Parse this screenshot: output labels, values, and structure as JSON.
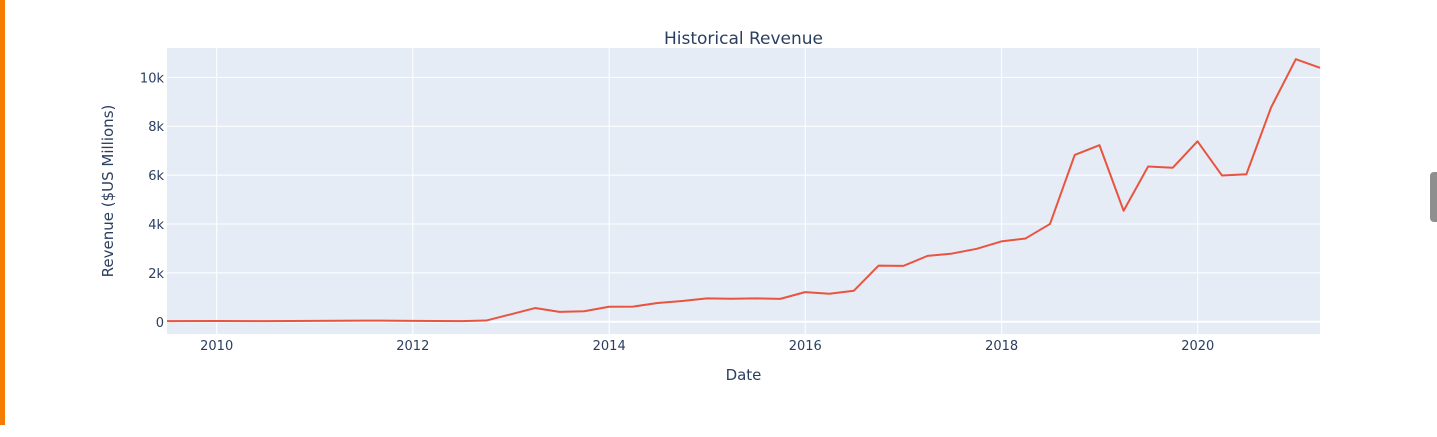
{
  "chart_data": {
    "type": "line",
    "title": "Historical Revenue",
    "xlabel": "Date",
    "ylabel": "Revenue ($US Millions)",
    "xlim": [
      "2009-06-30",
      "2021-03-31"
    ],
    "ylim": [
      -500,
      11200
    ],
    "x_ticks": [
      {
        "value": "2010-01-01",
        "label": "2010"
      },
      {
        "value": "2012-01-01",
        "label": "2012"
      },
      {
        "value": "2014-01-01",
        "label": "2014"
      },
      {
        "value": "2016-01-01",
        "label": "2016"
      },
      {
        "value": "2018-01-01",
        "label": "2018"
      },
      {
        "value": "2020-01-01",
        "label": "2020"
      }
    ],
    "y_ticks": [
      {
        "value": 0,
        "label": "0"
      },
      {
        "value": 2000,
        "label": "2k"
      },
      {
        "value": 4000,
        "label": "4k"
      },
      {
        "value": 6000,
        "label": "6k"
      },
      {
        "value": 8000,
        "label": "8k"
      },
      {
        "value": 10000,
        "label": "10k"
      }
    ],
    "grid": true,
    "line_color": "#e85440",
    "plot_background": "#e5ecf6",
    "series": [
      {
        "x": [
          "2009-06-30",
          "2009-12-31",
          "2010-06-30",
          "2010-12-31",
          "2011-06-30",
          "2011-12-31",
          "2012-06-30",
          "2012-09-30",
          "2012-12-31",
          "2013-03-31",
          "2013-06-30",
          "2013-09-30",
          "2013-12-31",
          "2014-03-31",
          "2014-06-30",
          "2014-09-30",
          "2014-12-31",
          "2015-03-31",
          "2015-06-30",
          "2015-09-30",
          "2015-12-31",
          "2016-03-31",
          "2016-06-30",
          "2016-09-30",
          "2016-12-31",
          "2017-03-31",
          "2017-06-30",
          "2017-09-30",
          "2017-12-31",
          "2018-03-31",
          "2018-06-30",
          "2018-09-30",
          "2018-12-31",
          "2019-03-31",
          "2019-06-30",
          "2019-09-30",
          "2019-12-31",
          "2020-03-31",
          "2020-06-30",
          "2020-09-30",
          "2020-12-31",
          "2021-03-31"
        ],
        "values": [
          27,
          31,
          28,
          36,
          49,
          39,
          27,
          50,
          306,
          562,
          405,
          431,
          615,
          621,
          769,
          852,
          957,
          940,
          955,
          937,
          1214,
          1147,
          1270,
          2298,
          2285,
          2696,
          2790,
          2985,
          3288,
          3409,
          4002,
          6824,
          7226,
          4541,
          6350,
          6303,
          7384,
          5985,
          6036,
          8771,
          10744,
          10389
        ]
      }
    ]
  }
}
